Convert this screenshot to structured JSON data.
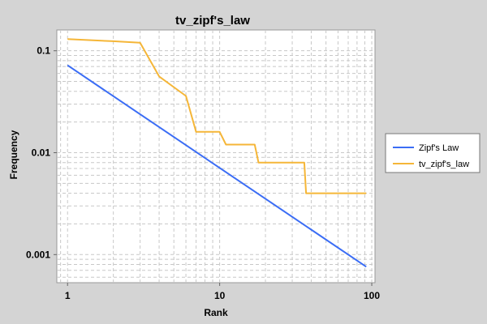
{
  "chart_data": {
    "type": "line",
    "title": "tv_zipf's_law",
    "xlabel": "Rank",
    "ylabel": "Frequency",
    "xscale": "log",
    "yscale": "log",
    "xlim": [
      0.85,
      105
    ],
    "ylim": [
      0.00053,
      0.16
    ],
    "x_ticks": [
      {
        "value": 1,
        "label": "1"
      },
      {
        "value": 10,
        "label": "10"
      },
      {
        "value": 100,
        "label": "100"
      }
    ],
    "y_ticks": [
      {
        "value": 0.001,
        "label": "0.001"
      },
      {
        "value": 0.01,
        "label": "0.01"
      },
      {
        "value": 0.1,
        "label": "0.1"
      }
    ],
    "grid": true,
    "legend_position": "right",
    "series": [
      {
        "name": "Zipf's Law",
        "color": "#3b6df5",
        "points": [
          [
            1,
            0.072
          ],
          [
            92,
            0.00076
          ]
        ]
      },
      {
        "name": "tv_zipf's_law",
        "color": "#f5b638",
        "points": [
          [
            1,
            0.13
          ],
          [
            2,
            0.124
          ],
          [
            3,
            0.12
          ],
          [
            4,
            0.056
          ],
          [
            6,
            0.036
          ],
          [
            7,
            0.016
          ],
          [
            10,
            0.016
          ],
          [
            11,
            0.012
          ],
          [
            17,
            0.012
          ],
          [
            18,
            0.008
          ],
          [
            36,
            0.008
          ],
          [
            37,
            0.004
          ],
          [
            92,
            0.004
          ]
        ]
      }
    ]
  }
}
